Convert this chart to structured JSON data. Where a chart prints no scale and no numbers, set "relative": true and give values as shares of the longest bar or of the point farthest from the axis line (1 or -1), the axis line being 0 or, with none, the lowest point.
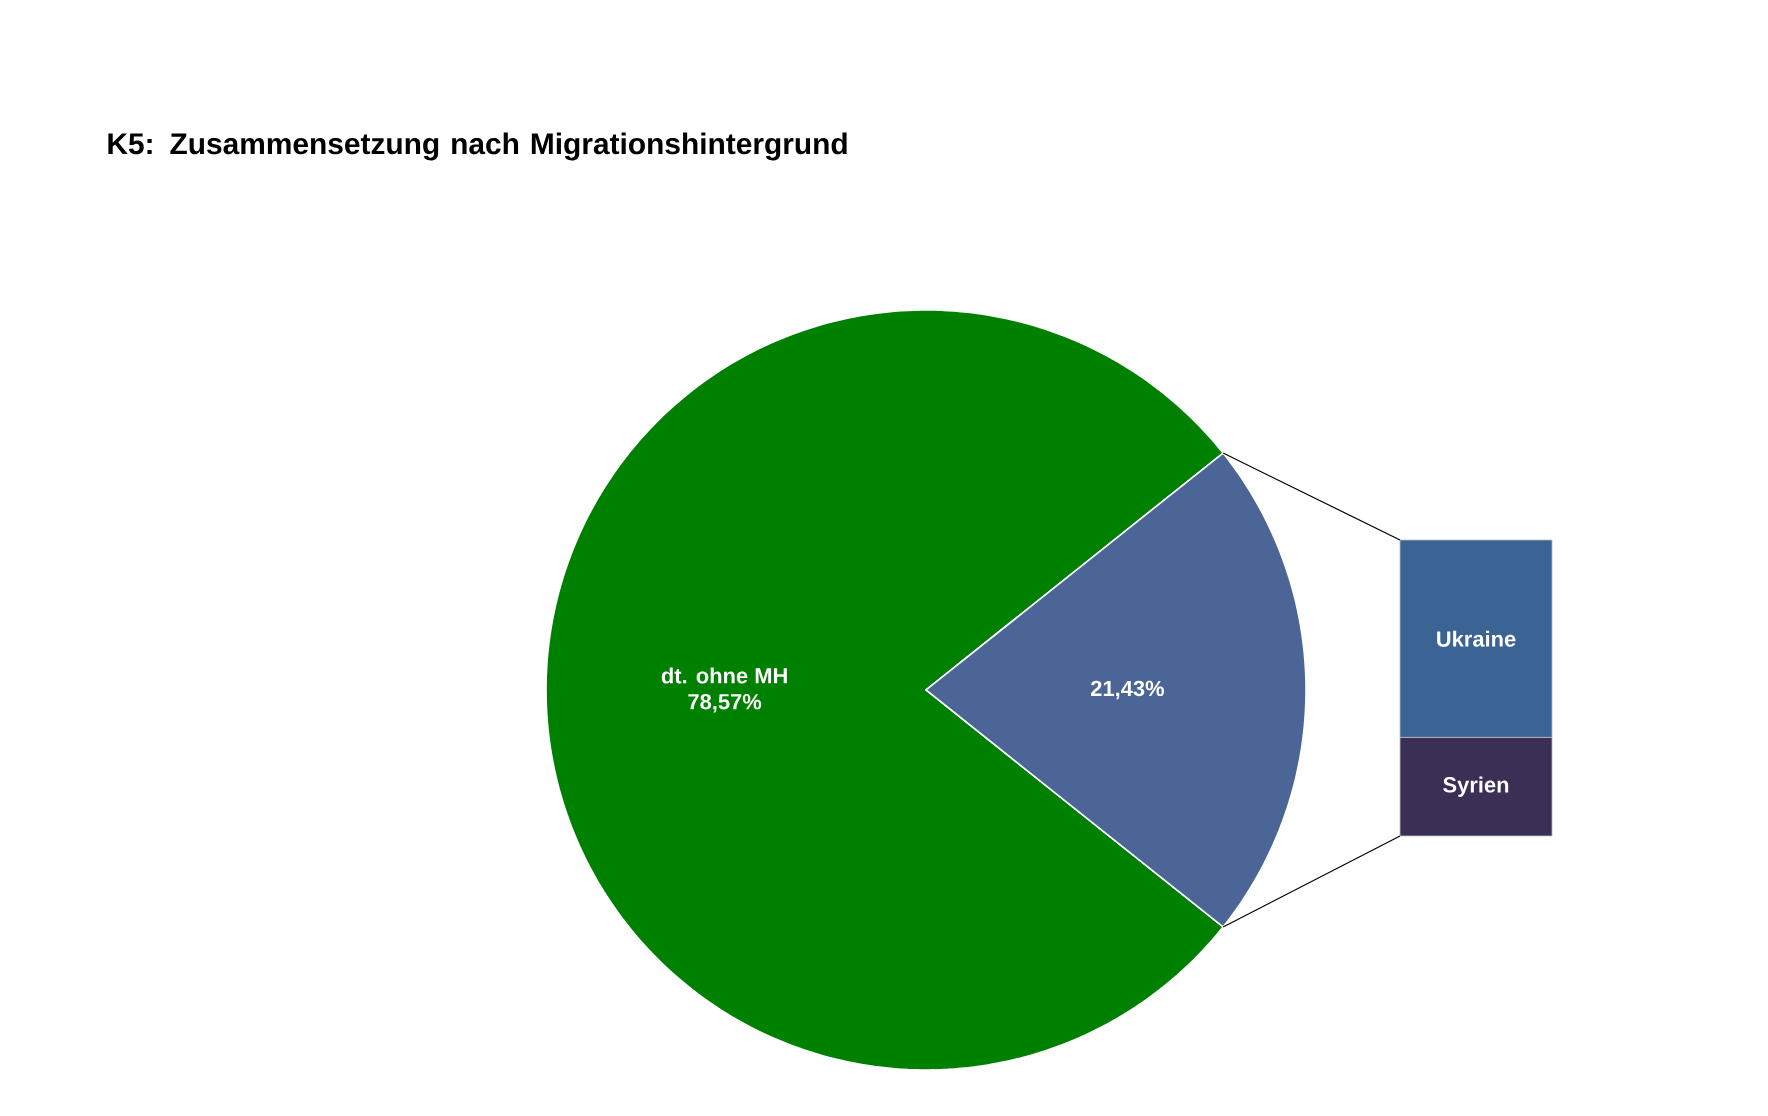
{
  "chart_data": [
    {
      "type": "pie",
      "title": "K5:  Zusammensetzung nach Migrationshintergrund",
      "categories": [
        "dt. ohne MH",
        null
      ],
      "values": [
        78.57,
        21.43
      ],
      "value_labels": [
        "78,57%",
        "21,43%"
      ],
      "colors": [
        "#008000",
        "#4a6596"
      ]
    },
    {
      "type": "bar",
      "stacked": true,
      "relative": true,
      "categories": [
        null
      ],
      "series": [
        {
          "name": "Syrien",
          "color": "#3c2f55",
          "values": [
            0.333
          ]
        },
        {
          "name": "Ukraine",
          "color": "#3b6394",
          "values": [
            0.667
          ]
        }
      ]
    }
  ]
}
